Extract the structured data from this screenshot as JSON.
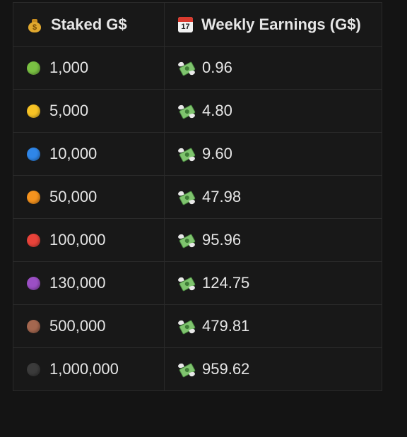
{
  "header": {
    "staked_label": "Staked G$",
    "earnings_label": "Weekly Earnings (G$)",
    "staked_icon": "money-bag-icon",
    "earnings_icon": "calendar-icon",
    "calendar_day": "17"
  },
  "row_icon": "flying-money-icon",
  "rows": [
    {
      "dot_color": "#7ac143",
      "staked": "1,000",
      "weekly": "0.96"
    },
    {
      "dot_color": "#f7c325",
      "staked": "5,000",
      "weekly": "4.80"
    },
    {
      "dot_color": "#2f86e8",
      "staked": "10,000",
      "weekly": "9.60"
    },
    {
      "dot_color": "#f5931e",
      "staked": "50,000",
      "weekly": "47.98"
    },
    {
      "dot_color": "#e8433a",
      "staked": "100,000",
      "weekly": "95.96"
    },
    {
      "dot_color": "#9b4fc4",
      "staked": "130,000",
      "weekly": "124.75"
    },
    {
      "dot_color": "#a4674f",
      "staked": "500,000",
      "weekly": "479.81"
    },
    {
      "dot_color": "#3b3b3b",
      "staked": "1,000,000",
      "weekly": "959.62"
    }
  ]
}
